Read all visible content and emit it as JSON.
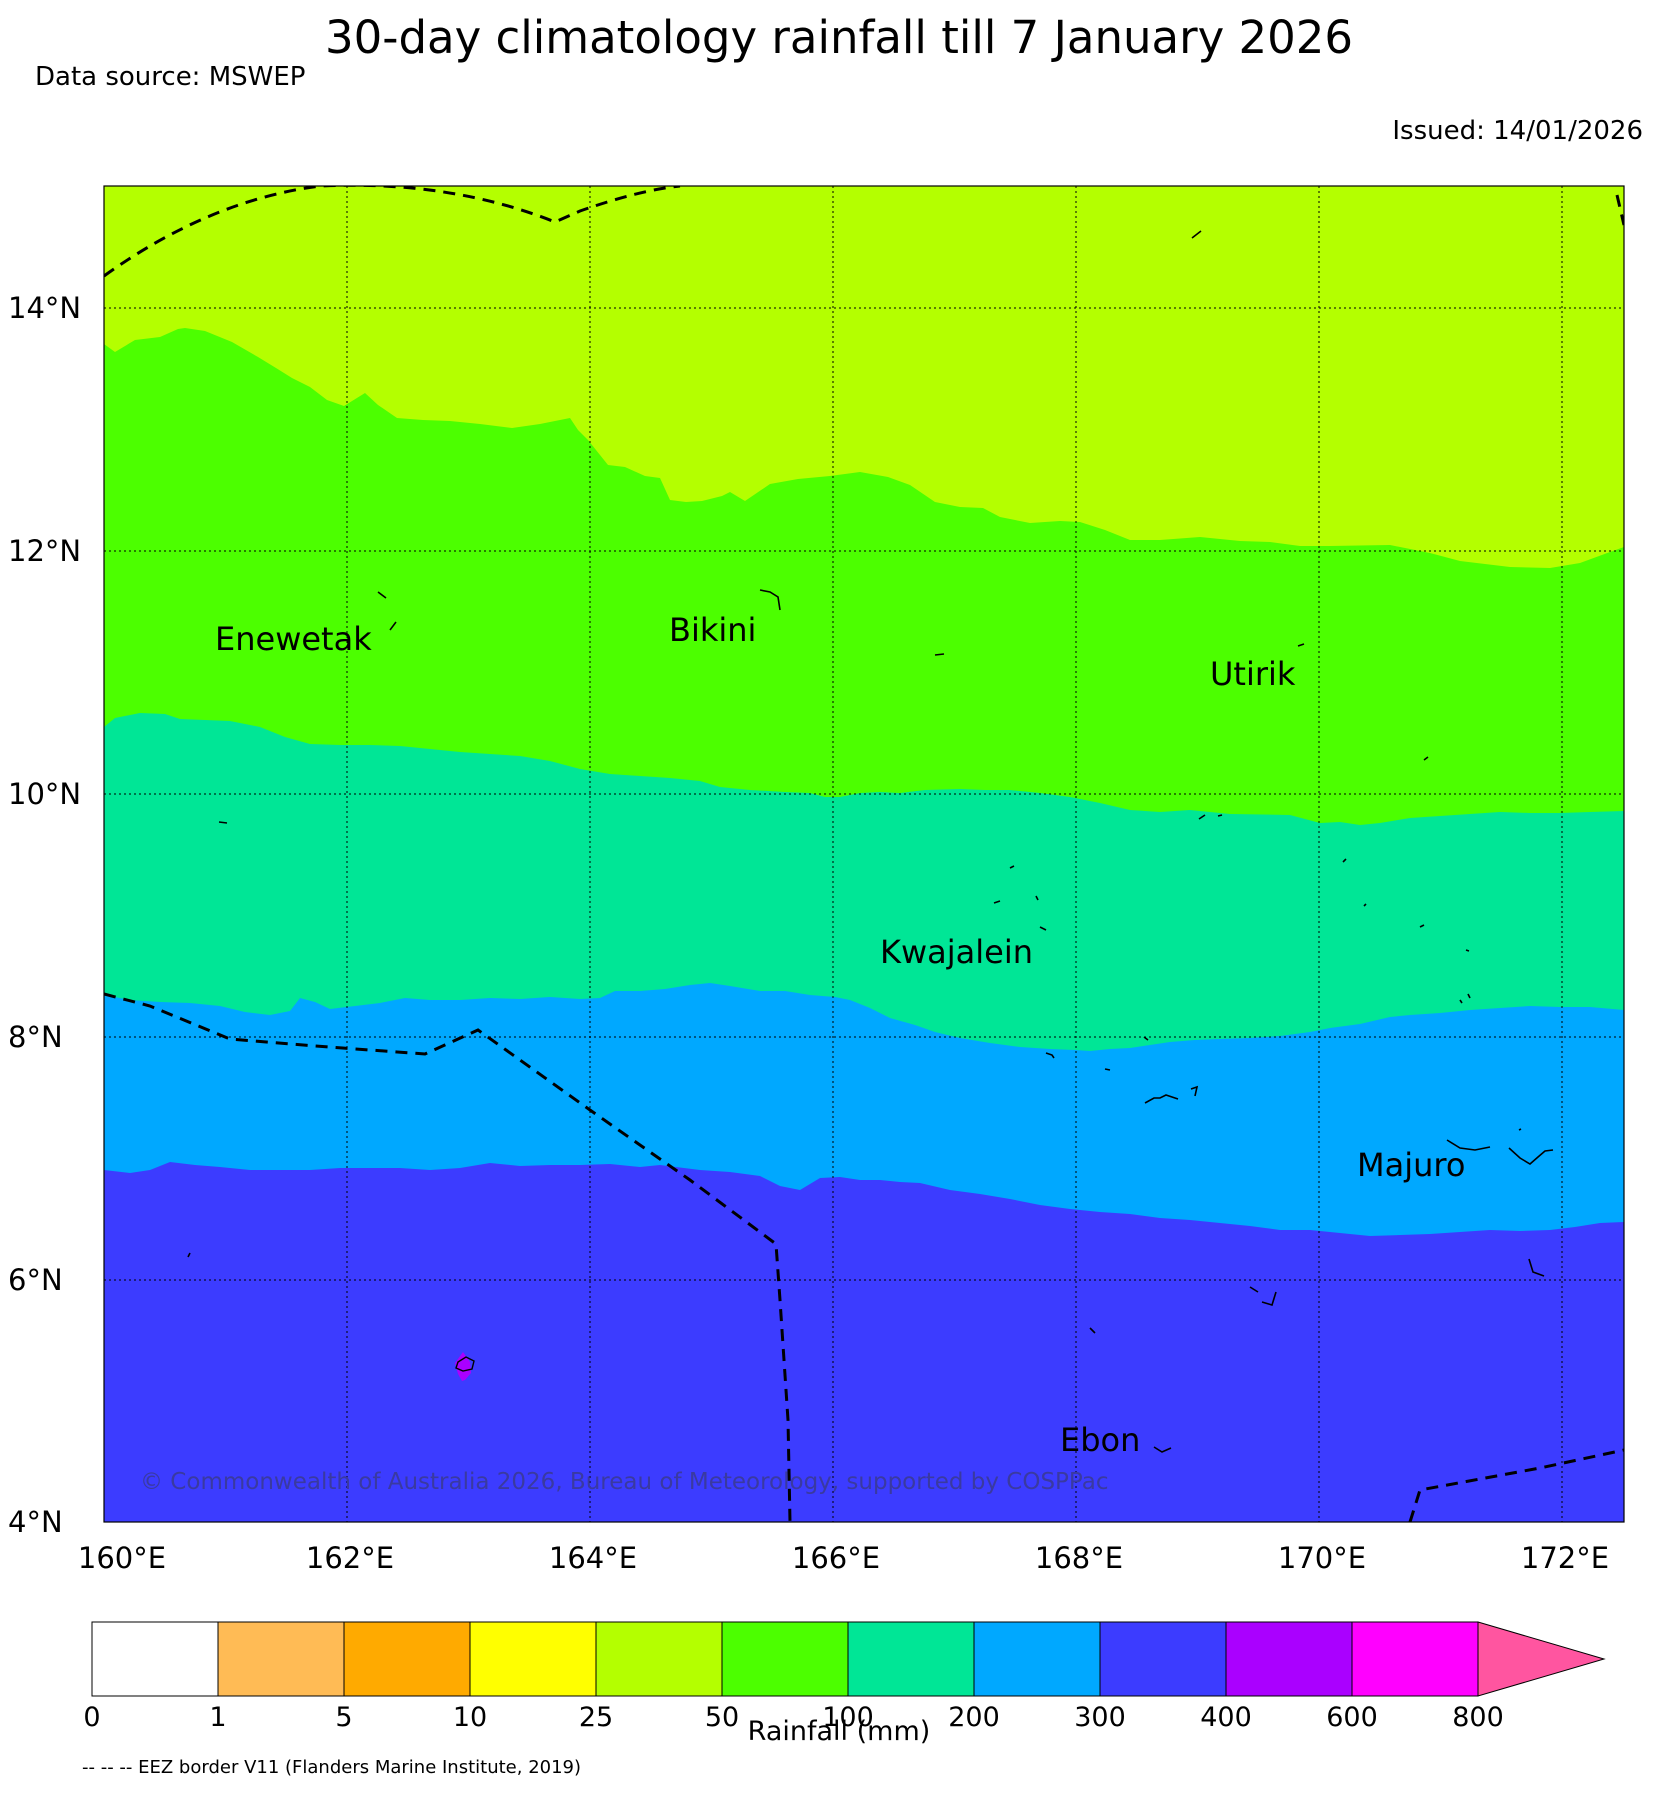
{
  "title": "30-day climatology rainfall till 7 January 2026",
  "data_source": "Data source: MSWEP",
  "issued": "Issued: 14/01/2026",
  "map": {
    "lon_ticks": [
      "160°E",
      "162°E",
      "164°E",
      "166°E",
      "168°E",
      "170°E",
      "172°E"
    ],
    "lat_ticks": [
      "14°N",
      "12°N",
      "10°N",
      "8°N",
      "6°N",
      "4°N"
    ],
    "places": [
      {
        "name": "Enewetak"
      },
      {
        "name": "Bikini"
      },
      {
        "name": "Utirik"
      },
      {
        "name": "Kwajalein"
      },
      {
        "name": "Majuro"
      },
      {
        "name": "Ebon"
      }
    ],
    "copyright": "© Commonwealth of Australia 2026, Bureau of Meteorology, supported by COSPPac"
  },
  "colorbar": {
    "label": "Rainfall (mm)",
    "ticks": [
      "0",
      "1",
      "5",
      "10",
      "25",
      "50",
      "100",
      "200",
      "300",
      "400",
      "600",
      "800"
    ],
    "colors": [
      "#ffffff",
      "#ffbb55",
      "#ffaa00",
      "#ffff00",
      "#b4ff00",
      "#4cff00",
      "#00e696",
      "#00a8ff",
      "#3c3cff",
      "#aa00ff",
      "#ff00ff",
      "#ff55a0"
    ]
  },
  "footnote": "-- -- -- EEZ border V11 (Flanders Marine Institute, 2019)",
  "colors": {
    "band_25_50": "#b4ff00",
    "band_50_100": "#4cff00",
    "band_100_200": "#00e696",
    "band_200_300": "#00a8ff",
    "band_300_400": "#3c3cff",
    "band_400_600": "#aa00ff"
  }
}
